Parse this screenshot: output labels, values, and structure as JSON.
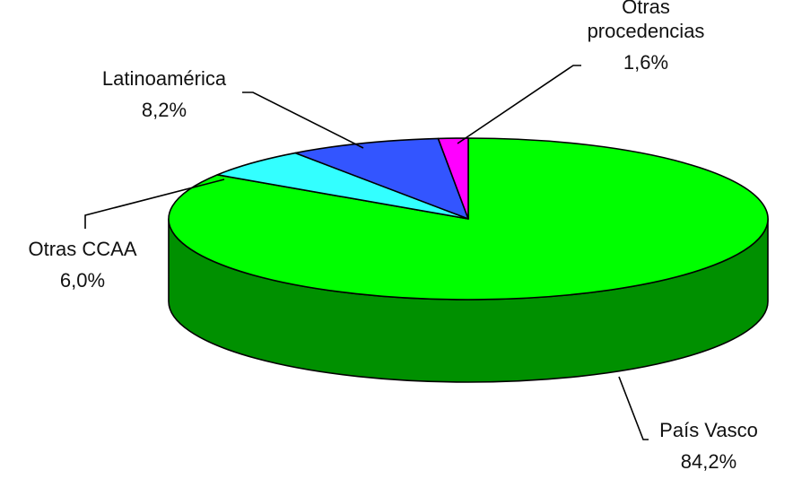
{
  "chart_data": {
    "type": "pie",
    "style": "3d",
    "title": "",
    "legend": "none",
    "series": [
      {
        "values": [
          84.2,
          6.0,
          8.2,
          1.6
        ],
        "value_labels": [
          "84,2%",
          "6,0%",
          "8,2%",
          "1,6%"
        ]
      }
    ],
    "categories": [
      "País Vasco",
      "Otras CCAA",
      "Latinoamérica",
      "Otras procedencias"
    ],
    "label_lines": [
      [
        "País Vasco"
      ],
      [
        "Otras CCAA"
      ],
      [
        "Latinoamérica"
      ],
      [
        "Otras",
        "procedencias"
      ]
    ],
    "colors": [
      "#00ff00",
      "#33ffff",
      "#3355ff",
      "#ff00ff"
    ],
    "side_colors": [
      "#009000",
      "#19a0a0",
      "#1c2e9a",
      "#900090"
    ]
  }
}
